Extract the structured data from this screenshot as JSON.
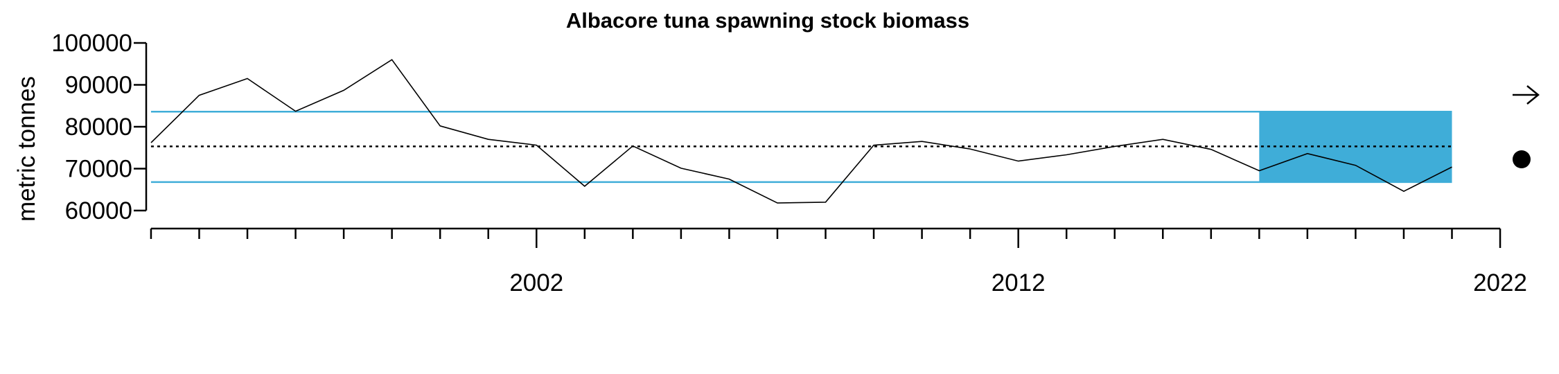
{
  "chart_data": {
    "type": "line",
    "title": "Albacore tuna spawning stock biomass",
    "xlabel": "",
    "ylabel": "metric tonnes",
    "xlim": [
      1993.9,
      2022.1
    ],
    "ylim": [
      60000,
      100000
    ],
    "x_ticks": [
      2002,
      2012,
      2022
    ],
    "x_tick_labels": [
      "2002",
      "2012",
      "2022"
    ],
    "y_ticks": [
      60000,
      70000,
      80000,
      90000,
      100000
    ],
    "y_tick_labels": [
      "60000",
      "70000",
      "80000",
      "90000",
      "100000"
    ],
    "x": [
      1994,
      1995,
      1996,
      1997,
      1998,
      1999,
      2000,
      2001,
      2002,
      2003,
      2004,
      2005,
      2006,
      2007,
      2008,
      2009,
      2010,
      2011,
      2012,
      2013,
      2014,
      2015,
      2016,
      2017,
      2018,
      2019,
      2020,
      2021
    ],
    "series": [
      {
        "values": [
          76200,
          87500,
          91500,
          83700,
          88700,
          96000,
          80200,
          77000,
          75600,
          65800,
          75400,
          70100,
          67500,
          61800,
          62000,
          75600,
          76500,
          74700,
          71800,
          73300,
          75300,
          77000,
          74600,
          69500,
          73600,
          70800,
          64600,
          70400
        ],
        "color": "#000000"
      }
    ],
    "reference_lines": {
      "mean": 75300,
      "upper": 83600,
      "lower": 66800,
      "mean_style": "dotted",
      "band_color": "#3fadd8"
    },
    "highlight_region": {
      "x_start": 2017,
      "x_end": 2021,
      "color": "#3fadd8"
    },
    "trend_indicator": "arrow-right",
    "status_indicator": "filled-circle",
    "grid": false
  }
}
